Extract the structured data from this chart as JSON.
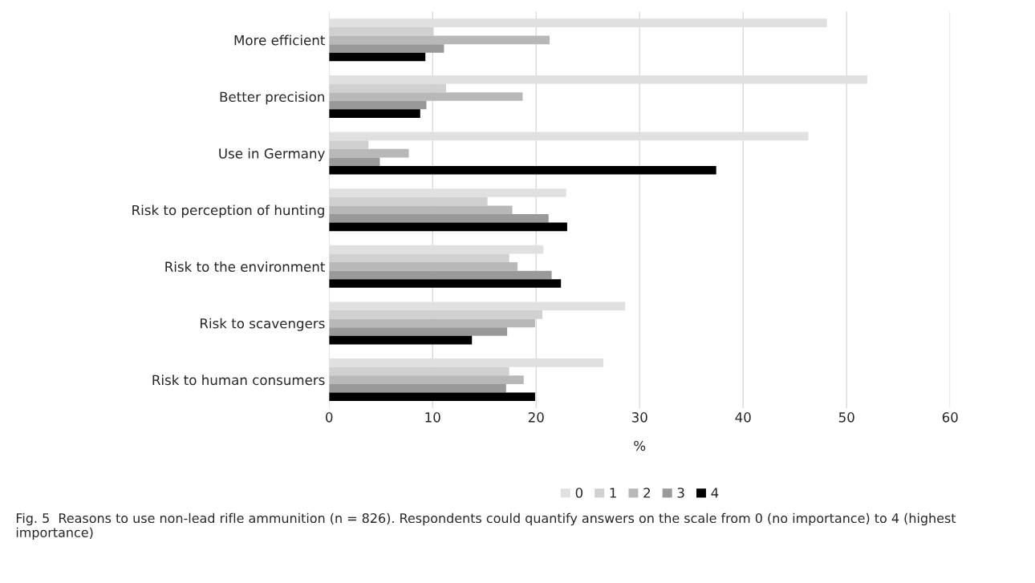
{
  "chart_data": {
    "type": "bar",
    "orientation": "horizontal",
    "categories": [
      "More efficient",
      "Better precision",
      "Use in Germany",
      "Risk to perception of hunting",
      "Risk to the environment",
      "Risk to scavengers",
      "Risk to human consumers"
    ],
    "series": [
      {
        "name": "0",
        "color": "#e0e0e0",
        "values": [
          48.1,
          52.0,
          46.3,
          22.9,
          20.7,
          28.6,
          26.5
        ]
      },
      {
        "name": "1",
        "color": "#d0d0d0",
        "values": [
          10.1,
          11.3,
          3.8,
          15.3,
          17.4,
          20.6,
          17.4
        ]
      },
      {
        "name": "2",
        "color": "#b8b8b8",
        "values": [
          21.3,
          18.7,
          7.7,
          17.7,
          18.2,
          19.9,
          18.8
        ]
      },
      {
        "name": "3",
        "color": "#999999",
        "values": [
          11.1,
          9.4,
          4.9,
          21.2,
          21.5,
          17.2,
          17.1
        ]
      },
      {
        "name": "4",
        "color": "#000000",
        "values": [
          9.3,
          8.8,
          37.4,
          23.0,
          22.4,
          13.8,
          19.9
        ]
      }
    ],
    "xlabel": "%",
    "xlim": [
      0,
      60
    ],
    "xticks": [
      0,
      10,
      20,
      30,
      40,
      50,
      60
    ],
    "grid": "x",
    "legend": "bottom",
    "annotations": [
      "Fig. 5  Reasons to use non-lead rifle ammunition (n = 826). Respondents could quantify answers on the scale from 0 (no importance) to 4 (highest importance)"
    ]
  }
}
